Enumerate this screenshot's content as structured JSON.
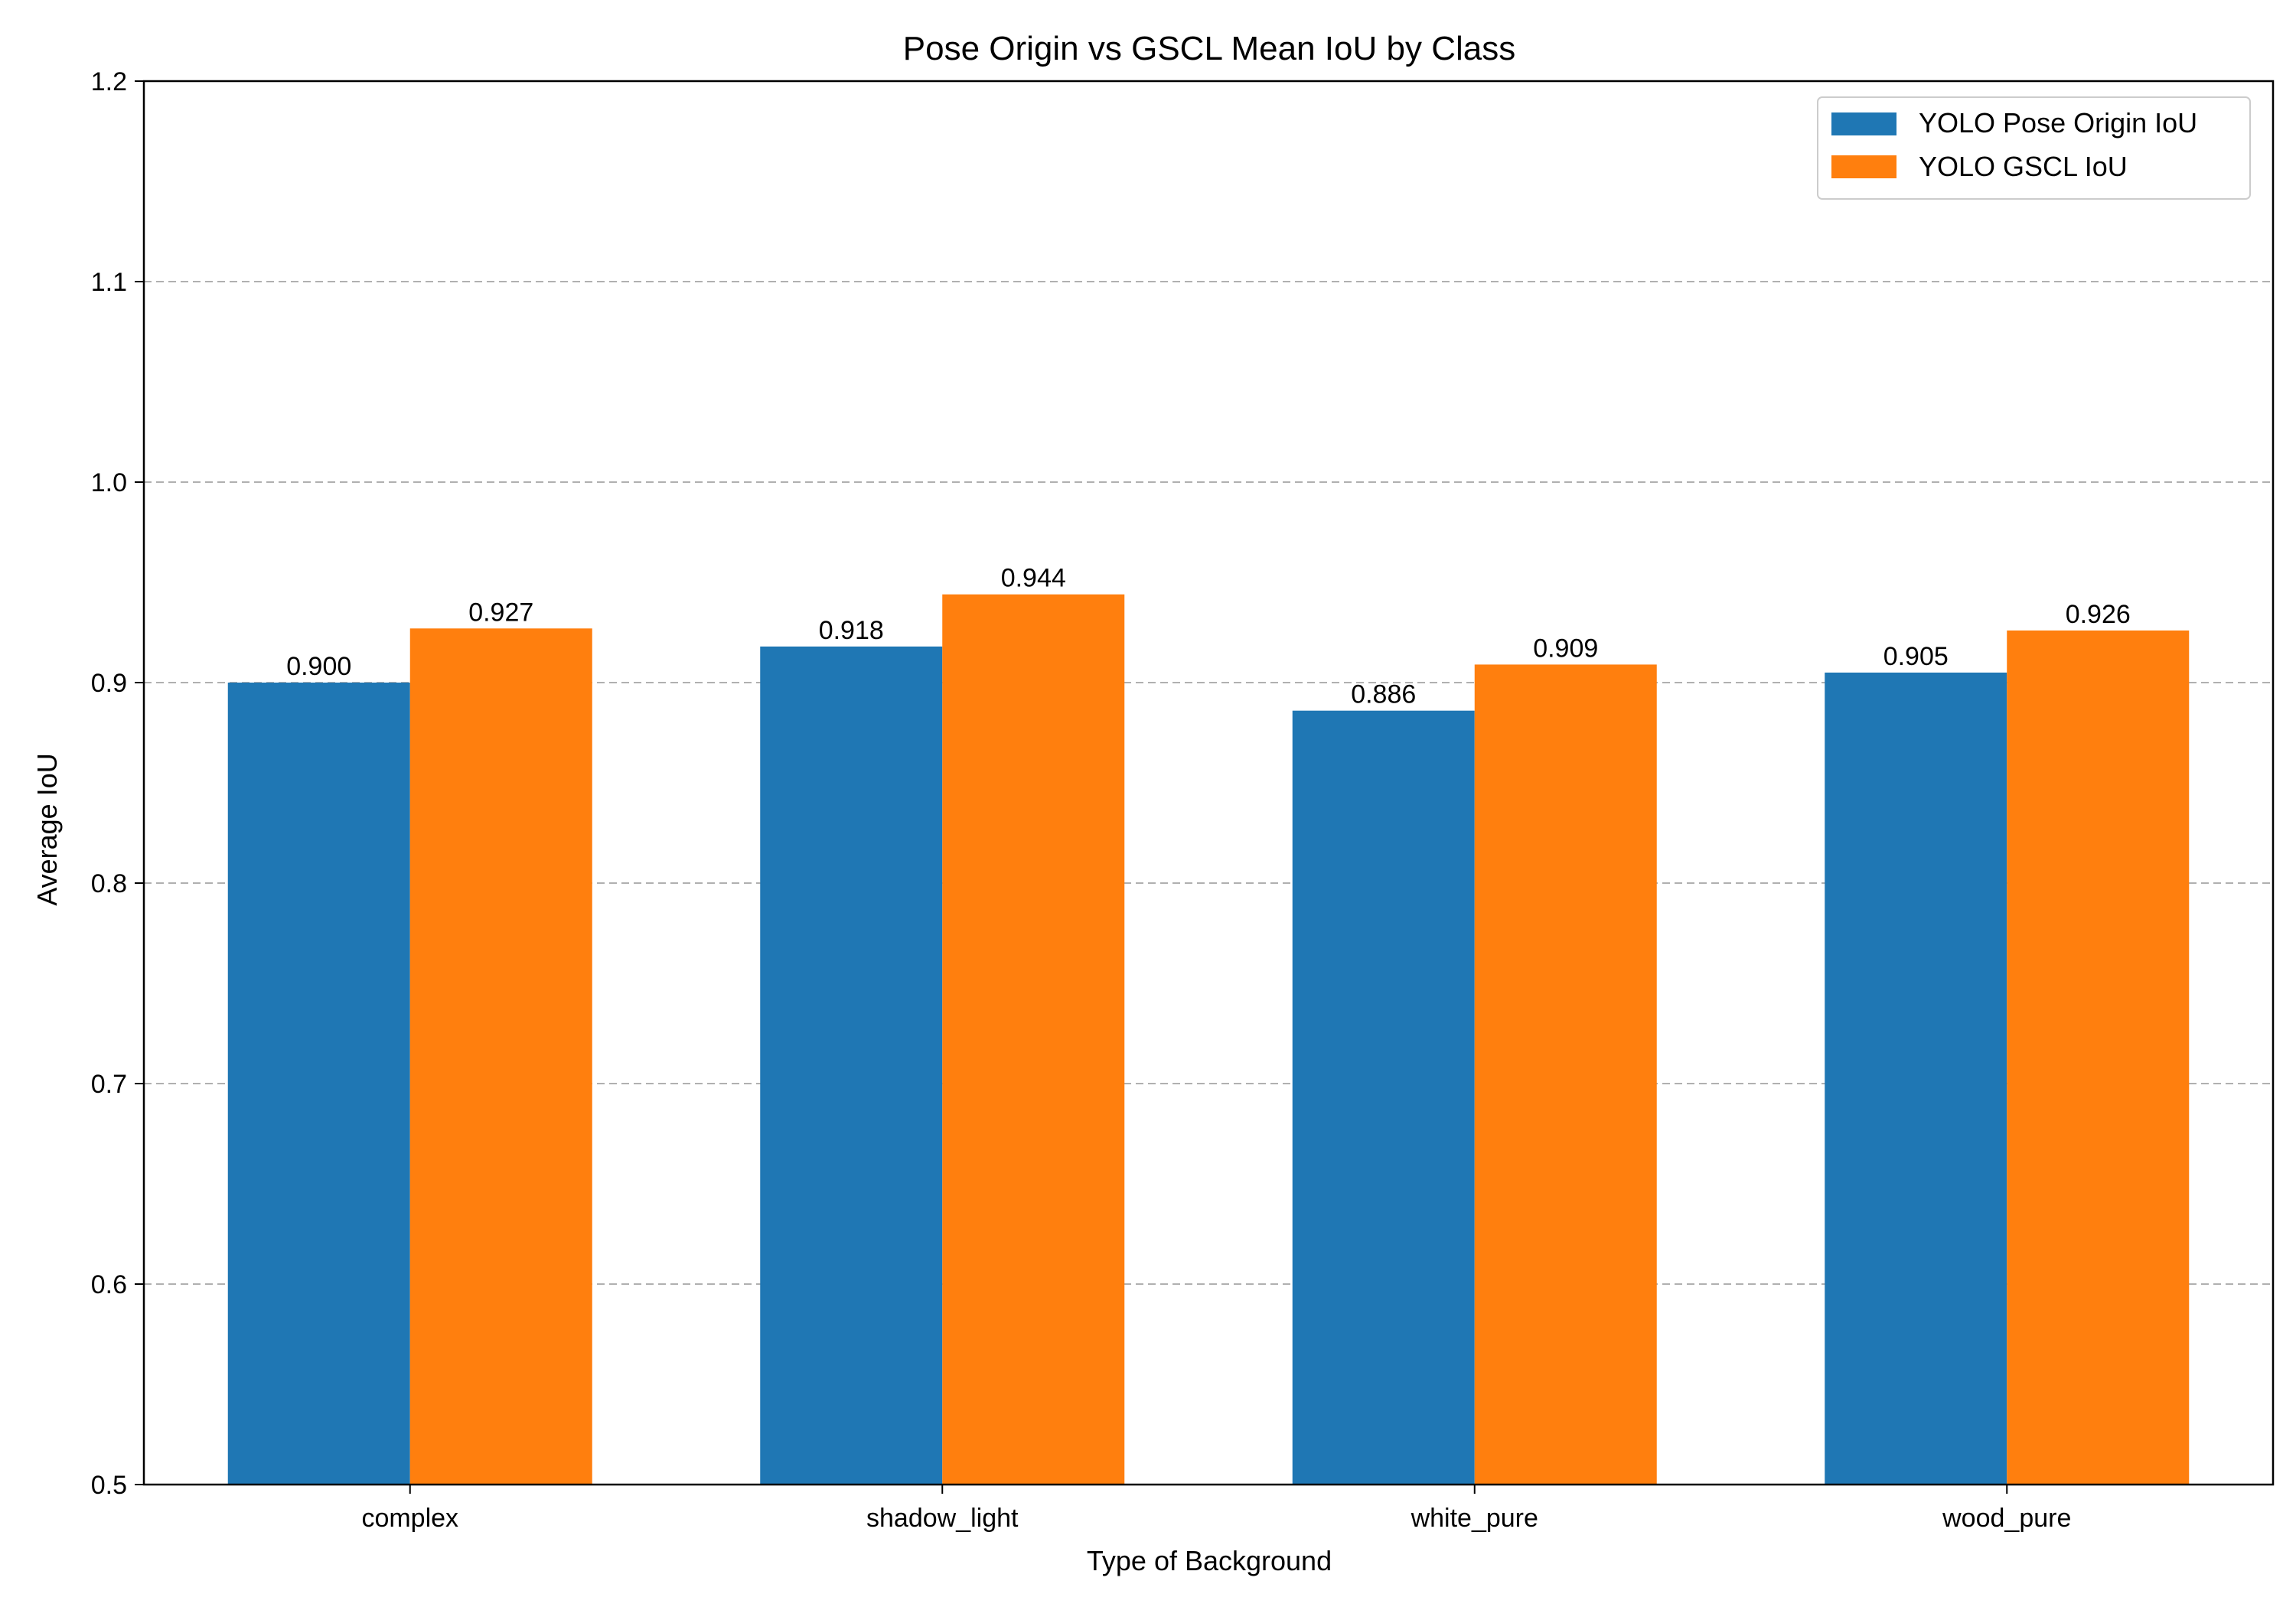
{
  "chart_data": {
    "type": "bar",
    "title": "Pose Origin vs GSCL Mean IoU by Class",
    "xlabel": "Type of Background",
    "ylabel": "Average IoU",
    "categories": [
      "complex",
      "shadow_light",
      "white_pure",
      "wood_pure"
    ],
    "series": [
      {
        "name": "YOLO Pose Origin IoU",
        "color": "#1f77b4",
        "values": [
          0.9,
          0.918,
          0.886,
          0.905
        ],
        "labels": [
          "0.900",
          "0.918",
          "0.886",
          "0.905"
        ]
      },
      {
        "name": "YOLO GSCL IoU",
        "color": "#ff7f0e",
        "values": [
          0.927,
          0.944,
          0.909,
          0.926
        ],
        "labels": [
          "0.927",
          "0.944",
          "0.909",
          "0.926"
        ]
      }
    ],
    "ylim": [
      0.5,
      1.2
    ],
    "yticks": [
      0.5,
      0.6,
      0.7,
      0.8,
      0.9,
      1.0,
      1.1,
      1.2
    ],
    "ytick_labels": [
      "0.5",
      "0.6",
      "0.7",
      "0.8",
      "0.9",
      "1.0",
      "1.1",
      "1.2"
    ],
    "grid": "y-dashed",
    "legend_position": "top-right"
  }
}
